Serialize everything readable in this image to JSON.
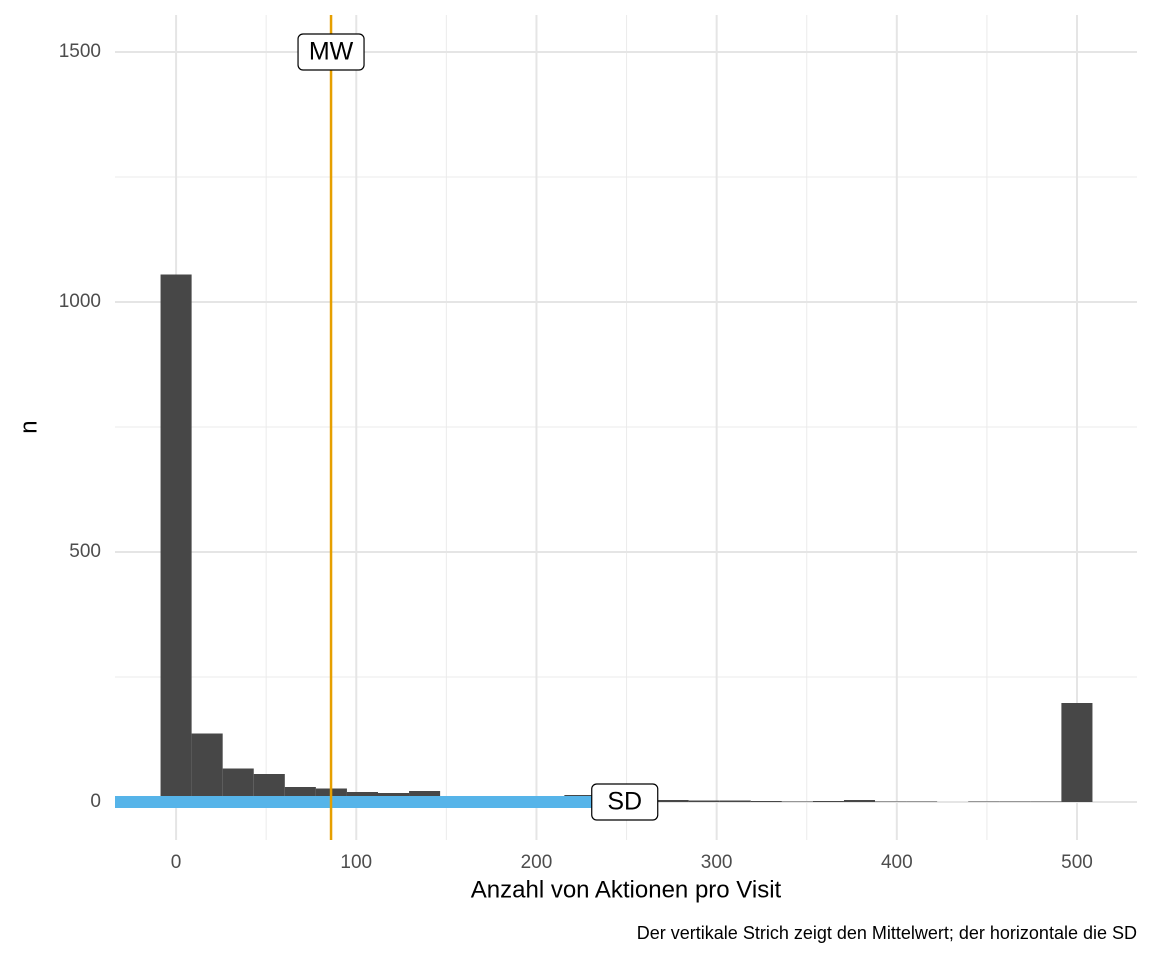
{
  "chart_data": {
    "type": "histogram",
    "x_label": "Anzahl von Aktionen pro Visit",
    "y_label": "n",
    "caption": "Der vertikale Strich zeigt den Mittelwert; der horizontale die SD",
    "bins": [
      -8.62,
      8.62,
      25.86,
      43.1,
      60.34,
      77.58,
      94.82,
      112.06,
      129.3,
      146.54,
      163.78,
      181.02,
      198.26,
      215.5,
      232.74,
      249.98,
      267.22,
      284.46,
      301.7,
      318.94,
      336.18,
      353.42,
      370.66,
      387.9,
      405.14,
      422.38,
      439.62,
      456.86,
      474.1,
      491.34,
      508.58
    ],
    "counts": [
      1055,
      137,
      67,
      56,
      30,
      27,
      20,
      18,
      22,
      12,
      10,
      8,
      10,
      14,
      10,
      12,
      4,
      3,
      3,
      2,
      1,
      2,
      4,
      1,
      1,
      0,
      1,
      1,
      1,
      198
    ],
    "color": "#474747",
    "mean": 86,
    "mean_label": "MW",
    "mean_label_y": 1500,
    "mean_color": "#E69F00",
    "sd_range": [
      -77,
      249
    ],
    "sd_label": "SD",
    "sd_color": "#56B4E9",
    "xlim": [
      -33.9,
      533.3
    ],
    "ylim": [
      -76,
      1574
    ],
    "xticks": [
      0,
      100,
      200,
      300,
      400,
      500
    ],
    "yticks": [
      0,
      500,
      1000,
      1500
    ],
    "x_minor_ticks": [
      50,
      150,
      250,
      350,
      450
    ],
    "y_minor_ticks": [
      250,
      750,
      1250
    ],
    "grid": true
  }
}
